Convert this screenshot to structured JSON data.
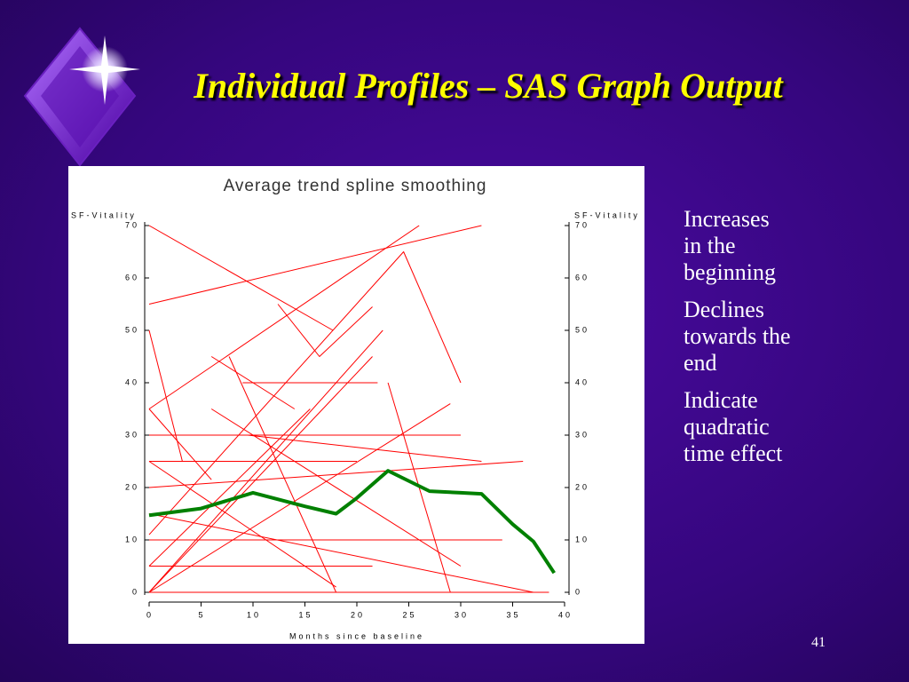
{
  "slide": {
    "title": "Individual Profiles – SAS Graph Output",
    "bullets": [
      [
        "Increases",
        "in the",
        "beginning"
      ],
      [
        "Declines",
        "towards the",
        "end"
      ],
      [
        "Indicate",
        "quadratic",
        "time effect"
      ]
    ],
    "page_number": "41"
  },
  "chart_data": {
    "type": "line",
    "title": "Average trend spline smoothing",
    "xlabel": "Months since baseline",
    "ylabel": "SF-Vitality",
    "xlim": [
      0,
      40
    ],
    "ylim": [
      0,
      70
    ],
    "xticks": [
      0,
      5,
      10,
      15,
      20,
      25,
      30,
      35,
      40
    ],
    "yticks": [
      0,
      10,
      20,
      30,
      40,
      50,
      60,
      70
    ],
    "trend": {
      "color": "#008000",
      "x": [
        0,
        5,
        10,
        15,
        18,
        20,
        23,
        27,
        30,
        32,
        35,
        37,
        39
      ],
      "values": [
        14.7,
        16,
        19,
        16.4,
        15,
        18,
        23.2,
        19.3,
        19,
        18.8,
        13,
        9.7,
        3.7
      ]
    },
    "series": [
      {
        "color": "#ff0000",
        "x": [
          0,
          32
        ],
        "values": [
          55,
          70
        ]
      },
      {
        "color": "#ff0000",
        "x": [
          0,
          17.7
        ],
        "values": [
          70,
          50
        ]
      },
      {
        "color": "#ff0000",
        "x": [
          0,
          26
        ],
        "values": [
          35,
          70
        ]
      },
      {
        "color": "#ff0000",
        "x": [
          0,
          24.5,
          30
        ],
        "values": [
          11,
          65,
          40
        ]
      },
      {
        "color": "#ff0000",
        "x": [
          12.4,
          16.4,
          21.5
        ],
        "values": [
          55,
          45,
          54.5
        ]
      },
      {
        "color": "#ff0000",
        "x": [
          0,
          3.2
        ],
        "values": [
          50,
          25
        ]
      },
      {
        "color": "#ff0000",
        "x": [
          0,
          6
        ],
        "values": [
          35,
          21.5
        ]
      },
      {
        "color": "#ff0000",
        "x": [
          6,
          14
        ],
        "values": [
          45,
          35
        ]
      },
      {
        "color": "#ff0000",
        "x": [
          9,
          22
        ],
        "values": [
          40,
          40
        ]
      },
      {
        "color": "#ff0000",
        "x": [
          0,
          20
        ],
        "values": [
          25,
          25
        ]
      },
      {
        "color": "#ff0000",
        "x": [
          0,
          34
        ],
        "values": [
          10,
          10
        ]
      },
      {
        "color": "#ff0000",
        "x": [
          0,
          33
        ],
        "values": [
          0,
          0
        ]
      },
      {
        "color": "#ff0000",
        "x": [
          0,
          21.5
        ],
        "values": [
          5,
          5
        ]
      },
      {
        "color": "#ff0000",
        "x": [
          0,
          22.5
        ],
        "values": [
          0,
          50
        ]
      },
      {
        "color": "#ff0000",
        "x": [
          0,
          36
        ],
        "values": [
          20,
          25
        ]
      },
      {
        "color": "#ff0000",
        "x": [
          3,
          38.5
        ],
        "values": [
          0,
          0
        ]
      },
      {
        "color": "#ff0000",
        "x": [
          0,
          29
        ],
        "values": [
          0,
          36
        ]
      },
      {
        "color": "#ff0000",
        "x": [
          0,
          37
        ],
        "values": [
          15,
          0
        ]
      },
      {
        "color": "#ff0000",
        "x": [
          7.7,
          18
        ],
        "values": [
          45,
          0
        ]
      },
      {
        "color": "#ff0000",
        "x": [
          0,
          30
        ],
        "values": [
          30,
          30
        ]
      },
      {
        "color": "#ff0000",
        "x": [
          6,
          30
        ],
        "values": [
          35,
          5
        ]
      },
      {
        "color": "#ff0000",
        "x": [
          0,
          18
        ],
        "values": [
          25,
          1
        ]
      },
      {
        "color": "#ff0000",
        "x": [
          23,
          29
        ],
        "values": [
          40,
          0
        ]
      },
      {
        "color": "#ff0000",
        "x": [
          0,
          21.5
        ],
        "values": [
          0,
          45
        ]
      },
      {
        "color": "#ff0000",
        "x": [
          9.5,
          32
        ],
        "values": [
          30,
          25
        ]
      },
      {
        "color": "#ff0000",
        "x": [
          0,
          15.5
        ],
        "values": [
          5,
          35
        ]
      }
    ]
  }
}
